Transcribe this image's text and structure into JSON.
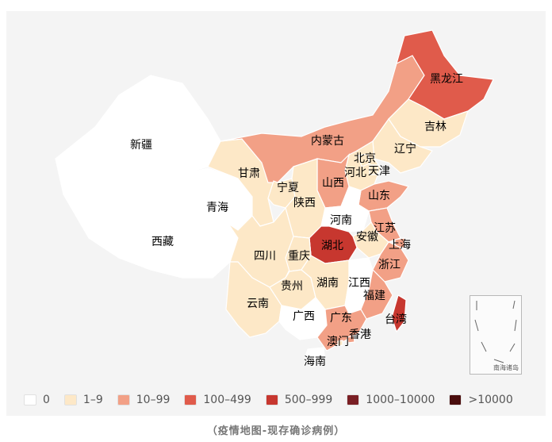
{
  "caption": "（疫情地图-现存确诊病例）",
  "legend": [
    {
      "label": "0",
      "color": "#ffffff"
    },
    {
      "label": "1–9",
      "color": "#fde8c7"
    },
    {
      "label": "10–99",
      "color": "#f2a086"
    },
    {
      "label": "100–499",
      "color": "#e05b4b"
    },
    {
      "label": "500–999",
      "color": "#c7372f"
    },
    {
      "label": "1000–10000",
      "color": "#7a1f24"
    },
    {
      "label": ">10000",
      "color": "#4a0d0d"
    }
  ],
  "inset_label": "南海诸岛",
  "regions": {
    "xinjiang": {
      "name": "新疆",
      "category": "0"
    },
    "xizang": {
      "name": "西藏",
      "category": "0"
    },
    "qinghai": {
      "name": "青海",
      "category": "0"
    },
    "gansu": {
      "name": "甘肃",
      "category": "1–9"
    },
    "neimenggu": {
      "name": "内蒙古",
      "category": "10–99"
    },
    "heilongjiang": {
      "name": "黑龙江",
      "category": "100–499"
    },
    "jilin": {
      "name": "吉林",
      "category": "1–9"
    },
    "liaoning": {
      "name": "辽宁",
      "category": "1–9"
    },
    "beijing": {
      "name": "北京",
      "category": "1–9"
    },
    "tianjin": {
      "name": "天津",
      "category": "1–9"
    },
    "hebei": {
      "name": "河北",
      "category": "1–9"
    },
    "shanxi": {
      "name": "山西",
      "category": "10–99"
    },
    "ningxia": {
      "name": "宁夏",
      "category": "1–9"
    },
    "shaanxi": {
      "name": "陕西",
      "category": "1–9"
    },
    "shandong": {
      "name": "山东",
      "category": "10–99"
    },
    "henan": {
      "name": "河南",
      "category": "0"
    },
    "jiangsu": {
      "name": "江苏",
      "category": "10–99"
    },
    "anhui": {
      "name": "安徽",
      "category": "1–9"
    },
    "shanghai": {
      "name": "上海",
      "category": "10–99"
    },
    "hubei": {
      "name": "湖北",
      "category": "500–999"
    },
    "sichuan": {
      "name": "四川",
      "category": "1–9"
    },
    "chongqing": {
      "name": "重庆",
      "category": "1–9"
    },
    "zhejiang": {
      "name": "浙江",
      "category": "10–99"
    },
    "guizhou": {
      "name": "贵州",
      "category": "1–9"
    },
    "hunan": {
      "name": "湖南",
      "category": "1–9"
    },
    "jiangxi": {
      "name": "江西",
      "category": "0"
    },
    "fujian": {
      "name": "福建",
      "category": "10–99"
    },
    "yunnan": {
      "name": "云南",
      "category": "1–9"
    },
    "guangxi": {
      "name": "广西",
      "category": "0"
    },
    "guangdong": {
      "name": "广东",
      "category": "10–99"
    },
    "taiwan": {
      "name": "台湾",
      "category": "500–999"
    },
    "xianggang": {
      "name": "香港",
      "category": "10–99"
    },
    "aomen": {
      "name": "澳门",
      "category": "1–9"
    },
    "hainan": {
      "name": "海南",
      "category": "0"
    }
  }
}
